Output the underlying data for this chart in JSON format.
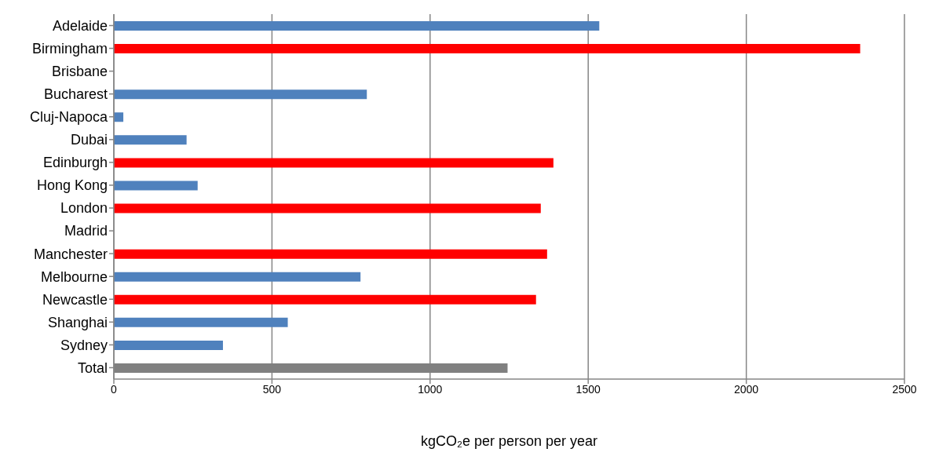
{
  "chart_data": {
    "type": "bar",
    "orientation": "horizontal",
    "xlabel": "kgCO₂e per person per year",
    "categories": [
      "Adelaide",
      "Birmingham",
      "Brisbane",
      "Bucharest",
      "Cluj-Napoca",
      "Dubai",
      "Edinburgh",
      "Hong Kong",
      "London",
      "Madrid",
      "Manchester",
      "Melbourne",
      "Newcastle",
      "Shanghai",
      "Sydney",
      "Total"
    ],
    "values": [
      1535,
      2360,
      null,
      800,
      30,
      230,
      1390,
      265,
      1350,
      null,
      1370,
      780,
      1335,
      550,
      345,
      1245
    ],
    "colors": [
      "#4f81bd",
      "#ff0000",
      "#4f81bd",
      "#4f81bd",
      "#4f81bd",
      "#4f81bd",
      "#ff0000",
      "#4f81bd",
      "#ff0000",
      "#4f81bd",
      "#ff0000",
      "#4f81bd",
      "#ff0000",
      "#4f81bd",
      "#4f81bd",
      "#808080"
    ],
    "xlim": [
      0,
      2500
    ],
    "xticks": [
      0,
      500,
      1000,
      1500,
      2000,
      2500
    ],
    "grid": "x",
    "legend": false
  }
}
